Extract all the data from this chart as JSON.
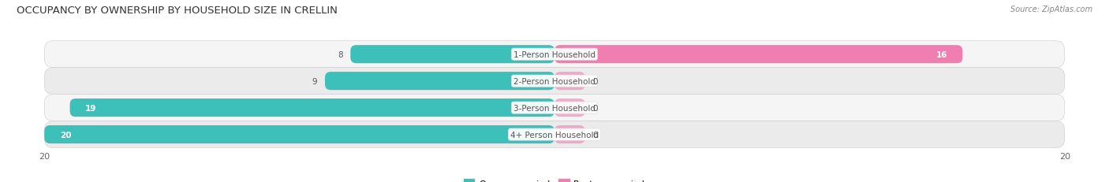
{
  "title": "OCCUPANCY BY OWNERSHIP BY HOUSEHOLD SIZE IN CRELLIN",
  "source": "Source: ZipAtlas.com",
  "categories": [
    "1-Person Household",
    "2-Person Household",
    "3-Person Household",
    "4+ Person Household"
  ],
  "owner_values": [
    8,
    9,
    19,
    20
  ],
  "renter_values": [
    16,
    0,
    0,
    0
  ],
  "owner_color": "#3DBFBA",
  "renter_color": "#F07EB0",
  "row_colors": [
    "#F5F5F5",
    "#EBEBEB",
    "#F5F5F5",
    "#EBEBEB"
  ],
  "xlim_max": 20,
  "label_color": "#555555",
  "value_color_inside": "#FFFFFF",
  "value_color_outside": "#555555",
  "title_fontsize": 9.5,
  "source_fontsize": 7,
  "tick_fontsize": 8,
  "label_fontsize": 7.5,
  "value_fontsize": 7.5
}
